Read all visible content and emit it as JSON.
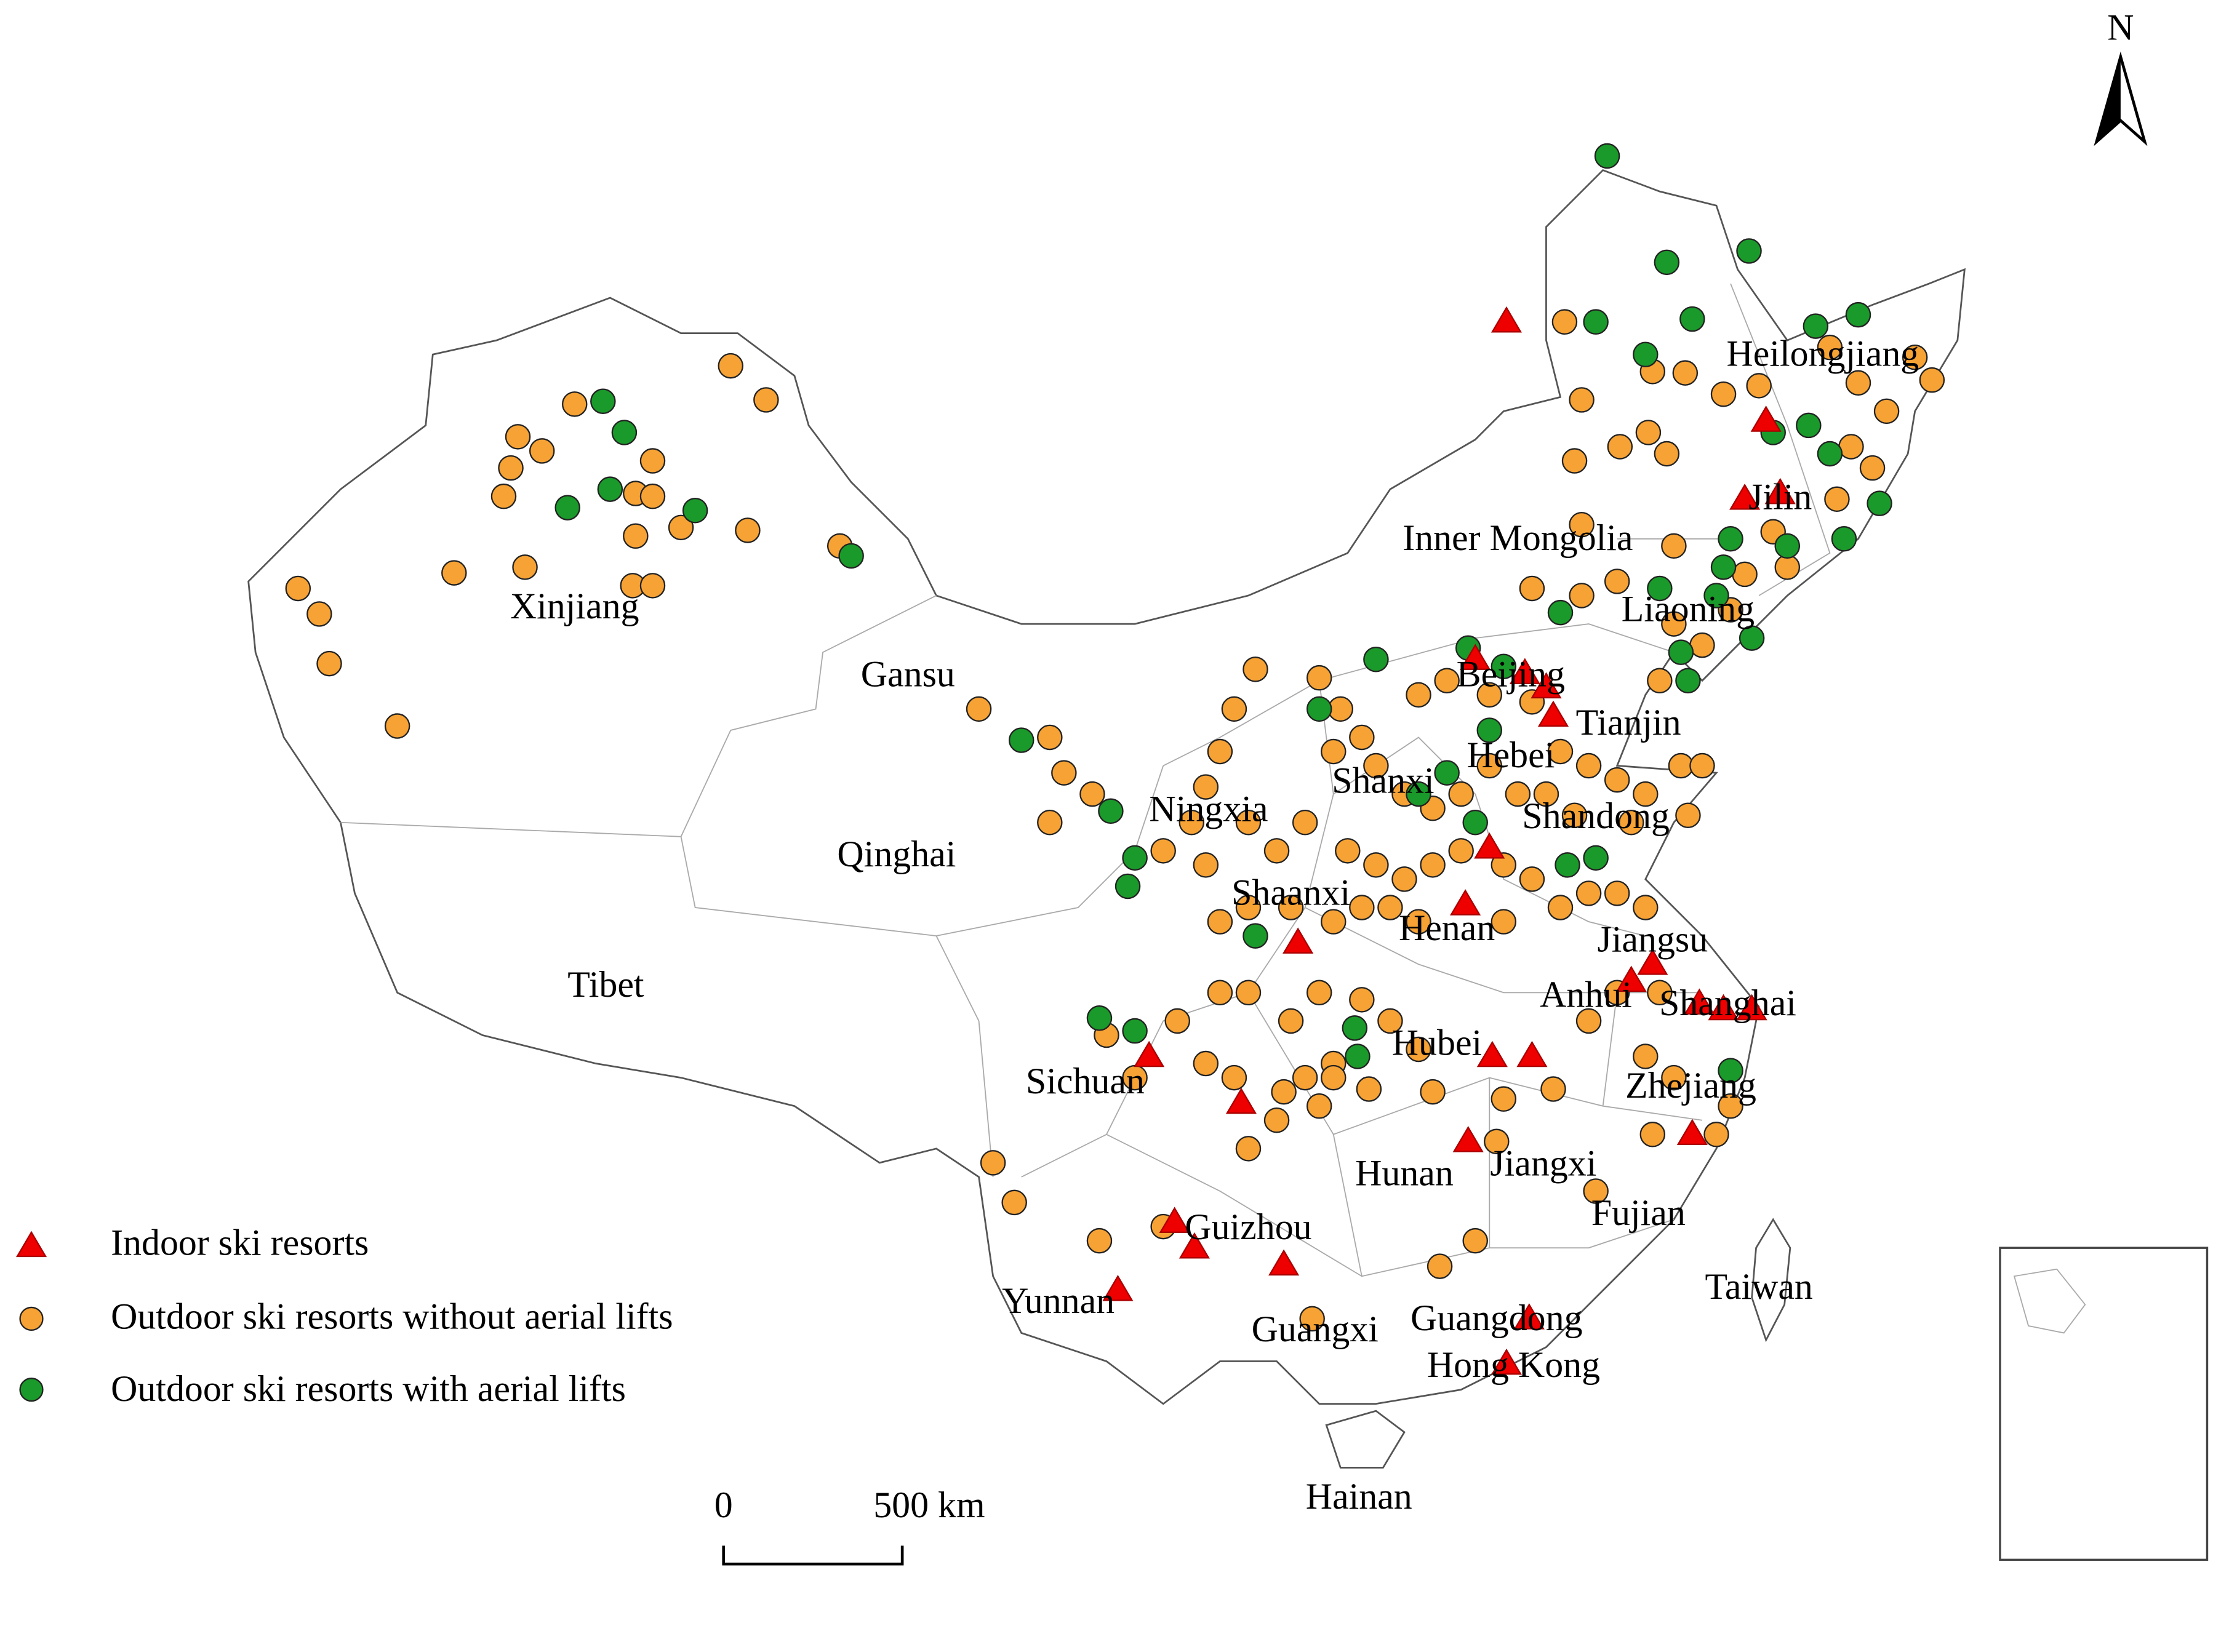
{
  "north_label": "N",
  "regions": [
    "Xinjiang",
    "Gansu",
    "Qinghai",
    "Tibet",
    "Inner Mongolia",
    "Heilongjiang",
    "Jilin",
    "Liaoning",
    "Beijing",
    "Tianjin",
    "Hebei",
    "Shanxi",
    "Ningxia",
    "Shandong",
    "Shaanxi",
    "Henan",
    "Jiangsu",
    "Anhui",
    "Shanghai",
    "Hubei",
    "Sichuan",
    "Zhejiang",
    "Hunan",
    "Jiangxi",
    "Fujian",
    "Guizhou",
    "Yunnan",
    "Guangxi",
    "Guangdong",
    "Taiwan",
    "Hong Kong",
    "Hainan"
  ],
  "legend": [
    "Indoor ski resorts",
    "Outdoor ski resorts without aerial lifts",
    "Outdoor ski resorts with aerial lifts"
  ],
  "scale_bar": [
    "0",
    "500 km"
  ]
}
